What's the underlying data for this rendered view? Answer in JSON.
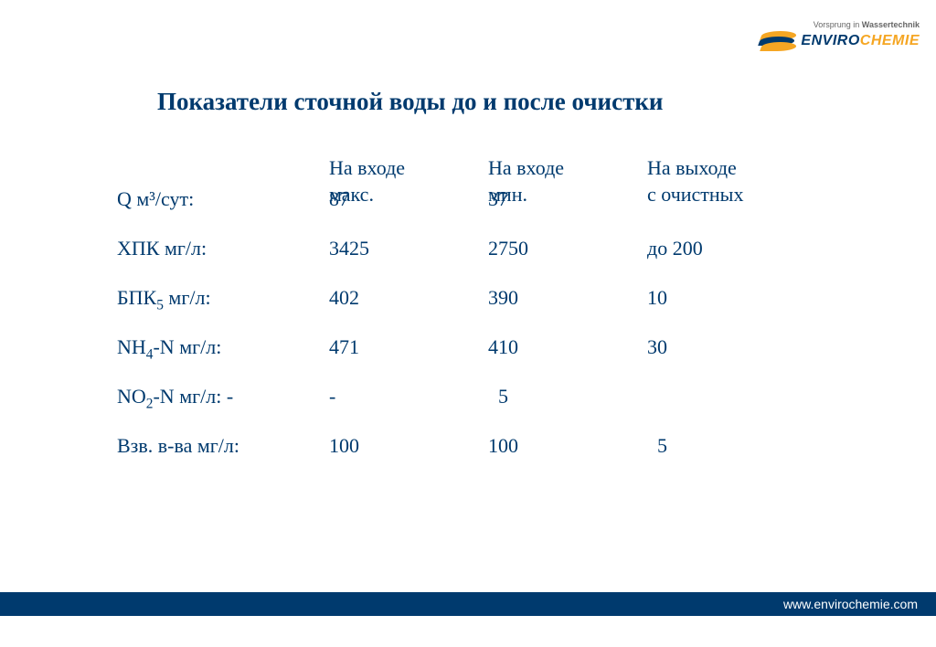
{
  "brand": {
    "tagline_part1": "Vorsprung in ",
    "tagline_part2": "Wassertechnik",
    "name_part1": "ENVIRO",
    "name_part2": "CHEMIE",
    "colors": {
      "primary": "#003a6e",
      "accent": "#f5a623",
      "footer_bg": "#003a6e",
      "footer_text": "#ffffff"
    }
  },
  "slide": {
    "title": "Показатели сточной воды до и после очистки",
    "title_fontsize": 27,
    "body_fontsize": 22,
    "text_color": "#003a6e"
  },
  "table": {
    "columns": [
      {
        "line1": "",
        "line2": ""
      },
      {
        "line1": "На входе",
        "line2": "макс."
      },
      {
        "line1": "На входе",
        "line2": "мин."
      },
      {
        "line1": "На выходе",
        "line2": "с очистных"
      }
    ],
    "rows": [
      {
        "param_html": "Q м³/сут:",
        "in_max": "87",
        "in_min": "37",
        "out": ""
      },
      {
        "param_html": "ХПК мг/л:",
        "in_max": "3425",
        "in_min": "2750",
        "out": "до 200"
      },
      {
        "param_html": "БПК<sub>5</sub> мг/л:",
        "in_max": "402",
        "in_min": "390",
        "out": "10"
      },
      {
        "param_html": "NH<sub>4</sub>-N мг/л:",
        "in_max": "471",
        "in_min": "410",
        "out": "30"
      },
      {
        "param_html": "NO<sub>2</sub>-N мг/л: -",
        "in_max": "-",
        "in_min": "  5",
        "out": ""
      },
      {
        "param_html": "Взв. в-ва мг/л:",
        "in_max": "100",
        "in_min": "100",
        "out": "  5"
      }
    ]
  },
  "footer": {
    "url": "www.envirochemie.com"
  }
}
